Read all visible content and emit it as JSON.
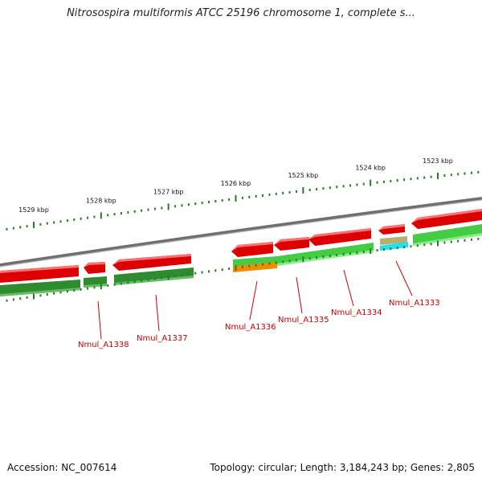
{
  "title": "Nitrosospira multiformis ATCC 25196 chromosome 1, complete s...",
  "footer": {
    "accession": "Accession: NC_007614",
    "summary": "Topology: circular; Length: 3,184,243 bp; Genes: 2,805"
  },
  "colors": {
    "forward_gene": "#dd0000",
    "reverse_cds_light": "#44cc44",
    "reverse_cds_dark": "#2e8b2e",
    "tick": "#2a7a2a",
    "backbone": "#808080",
    "label": "#cc0000",
    "orange_feature": "#f08c00",
    "cyan_feature": "#22e0f0",
    "tan_feature": "#b8b070"
  },
  "scale_ticks": [
    {
      "kbp": 1529,
      "label": "1529 kbp"
    },
    {
      "kbp": 1528,
      "label": "1528 kbp"
    },
    {
      "kbp": 1527,
      "label": "1527 kbp"
    },
    {
      "kbp": 1526,
      "label": "1526 kbp"
    },
    {
      "kbp": 1525,
      "label": "1525 kbp"
    },
    {
      "kbp": 1524,
      "label": "1524 kbp"
    },
    {
      "kbp": 1523,
      "label": "1523 kbp"
    }
  ],
  "gene_labels": [
    {
      "name": "Nmul_A1338"
    },
    {
      "name": "Nmul_A1337"
    },
    {
      "name": "Nmul_A1336"
    },
    {
      "name": "Nmul_A1335"
    },
    {
      "name": "Nmul_A1334"
    },
    {
      "name": "Nmul_A1333"
    }
  ]
}
